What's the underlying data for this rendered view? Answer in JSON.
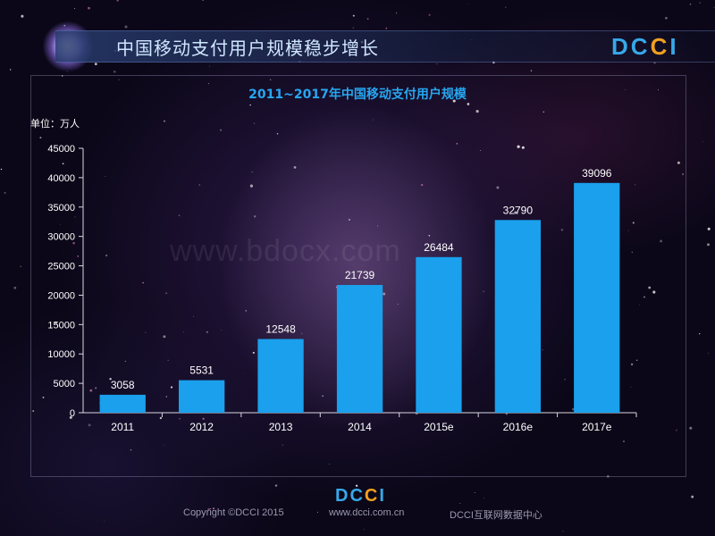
{
  "header": {
    "title": "中国移动支付用户规模稳步增长",
    "logo": "DCCI"
  },
  "watermark": "www.bdocx.com",
  "footer": {
    "logo": "DCCI",
    "copyright": "Copyright ©DCCI 2015",
    "website": "www.dcci.com.cn",
    "org": "DCCI互联网数据中心"
  },
  "colors": {
    "bar": "#1aa0ec",
    "title": "#27a6f0",
    "logo_blue": "#37a8e8",
    "logo_orange": "#f0a020"
  },
  "chart_data": {
    "type": "bar",
    "title": "2011~2017年中国移动支付用户规模",
    "unit_label": "单位：万人",
    "xlabel": "",
    "ylabel": "",
    "categories": [
      "2011",
      "2012",
      "2013",
      "2014",
      "2015e",
      "2016e",
      "2017e"
    ],
    "values": [
      3058,
      5531,
      12548,
      21739,
      26484,
      32790,
      39096
    ],
    "ylim": [
      0,
      45000
    ],
    "yticks": [
      0,
      5000,
      10000,
      15000,
      20000,
      25000,
      30000,
      35000,
      40000,
      45000
    ],
    "data_labels": true,
    "grid": false,
    "legend": "none"
  }
}
